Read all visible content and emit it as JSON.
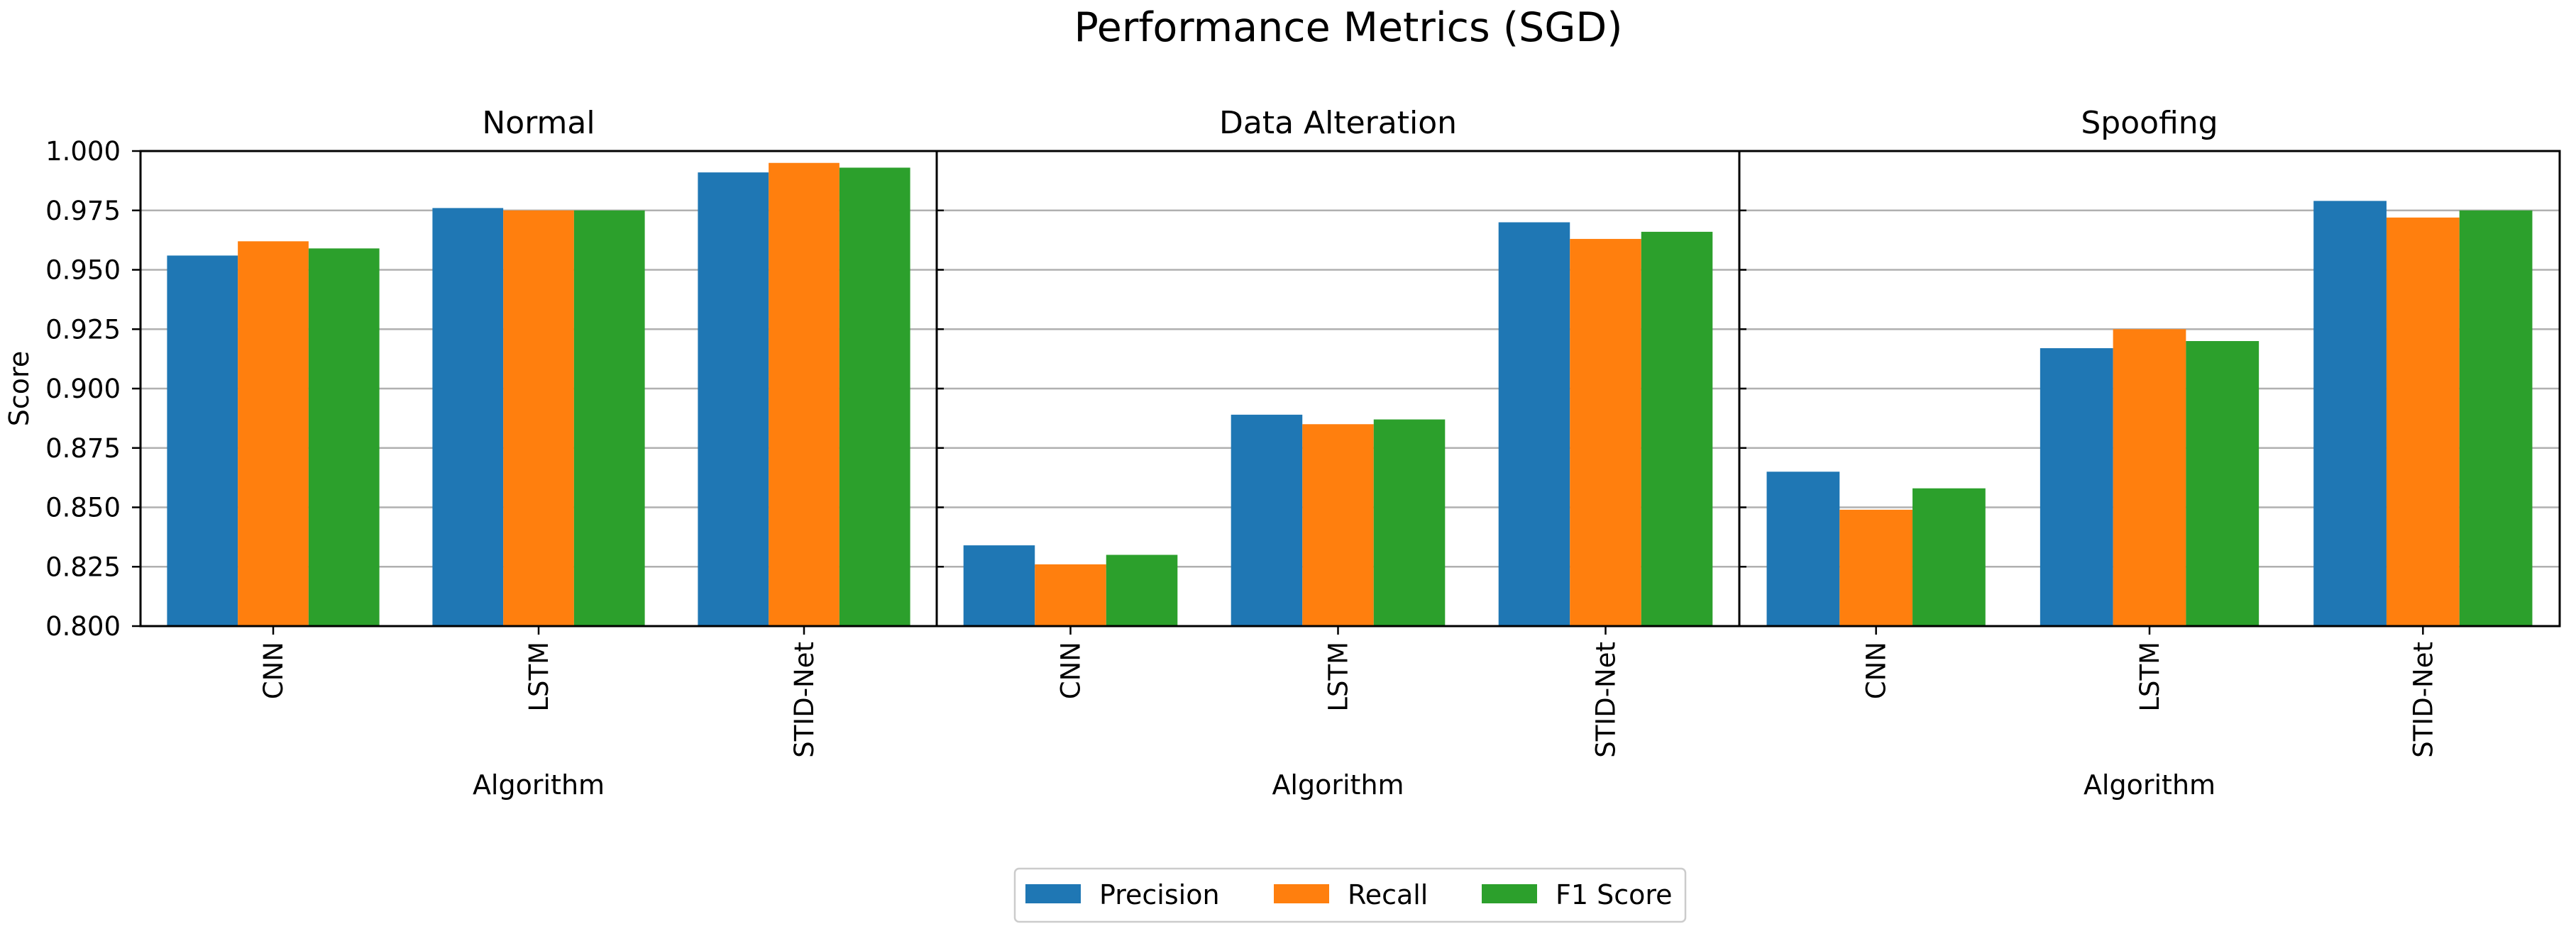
{
  "chart_data": {
    "type": "bar",
    "title": "Performance Metrics (SGD)",
    "ylabel": "Score",
    "xlabel": "Algorithm",
    "ylim": [
      0.8,
      1.0
    ],
    "yticks": [
      "0.800",
      "0.825",
      "0.850",
      "0.875",
      "0.900",
      "0.925",
      "0.950",
      "0.975",
      "1.000"
    ],
    "grid": true,
    "legend_position": "bottom-center",
    "series_meta": [
      {
        "name": "Precision",
        "color": "#1f77b4"
      },
      {
        "name": "Recall",
        "color": "#ff7f0e"
      },
      {
        "name": "F1 Score",
        "color": "#2ca02c"
      }
    ],
    "panels": [
      {
        "title": "Normal",
        "categories": [
          "CNN",
          "LSTM",
          "STID-Net"
        ],
        "series": [
          {
            "name": "Precision",
            "values": [
              0.956,
              0.976,
              0.991
            ]
          },
          {
            "name": "Recall",
            "values": [
              0.962,
              0.975,
              0.995
            ]
          },
          {
            "name": "F1 Score",
            "values": [
              0.959,
              0.975,
              0.993
            ]
          }
        ]
      },
      {
        "title": "Data Alteration",
        "categories": [
          "CNN",
          "LSTM",
          "STID-Net"
        ],
        "series": [
          {
            "name": "Precision",
            "values": [
              0.834,
              0.889,
              0.97
            ]
          },
          {
            "name": "Recall",
            "values": [
              0.826,
              0.885,
              0.963
            ]
          },
          {
            "name": "F1 Score",
            "values": [
              0.83,
              0.887,
              0.966
            ]
          }
        ]
      },
      {
        "title": "Spoofing",
        "categories": [
          "CNN",
          "LSTM",
          "STID-Net"
        ],
        "series": [
          {
            "name": "Precision",
            "values": [
              0.865,
              0.917,
              0.979
            ]
          },
          {
            "name": "Recall",
            "values": [
              0.849,
              0.925,
              0.972
            ]
          },
          {
            "name": "F1 Score",
            "values": [
              0.858,
              0.92,
              0.975
            ]
          }
        ]
      }
    ]
  }
}
